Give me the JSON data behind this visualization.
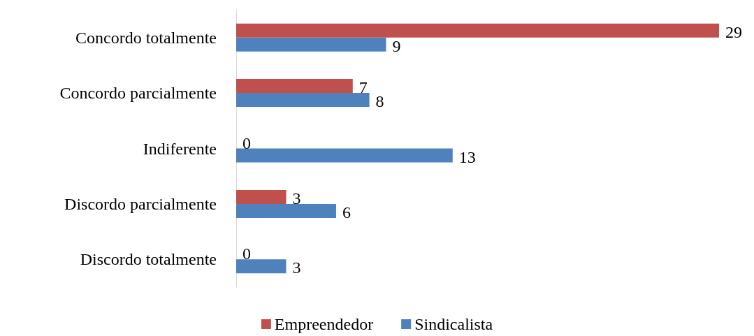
{
  "chart_data": {
    "type": "bar",
    "orientation": "horizontal",
    "categories": [
      "Concordo totalmente",
      "Concordo parcialmente",
      "Indiferente",
      "Discordo parcialmente",
      "Discordo totalmente"
    ],
    "series": [
      {
        "name": "Empreendedor",
        "color": "#c0504d",
        "values": [
          29,
          7,
          0,
          3,
          0
        ]
      },
      {
        "name": "Sindicalista",
        "color": "#4f81bd",
        "values": [
          9,
          8,
          13,
          6,
          3
        ]
      }
    ],
    "data_labels": true,
    "legend": "bottom"
  }
}
